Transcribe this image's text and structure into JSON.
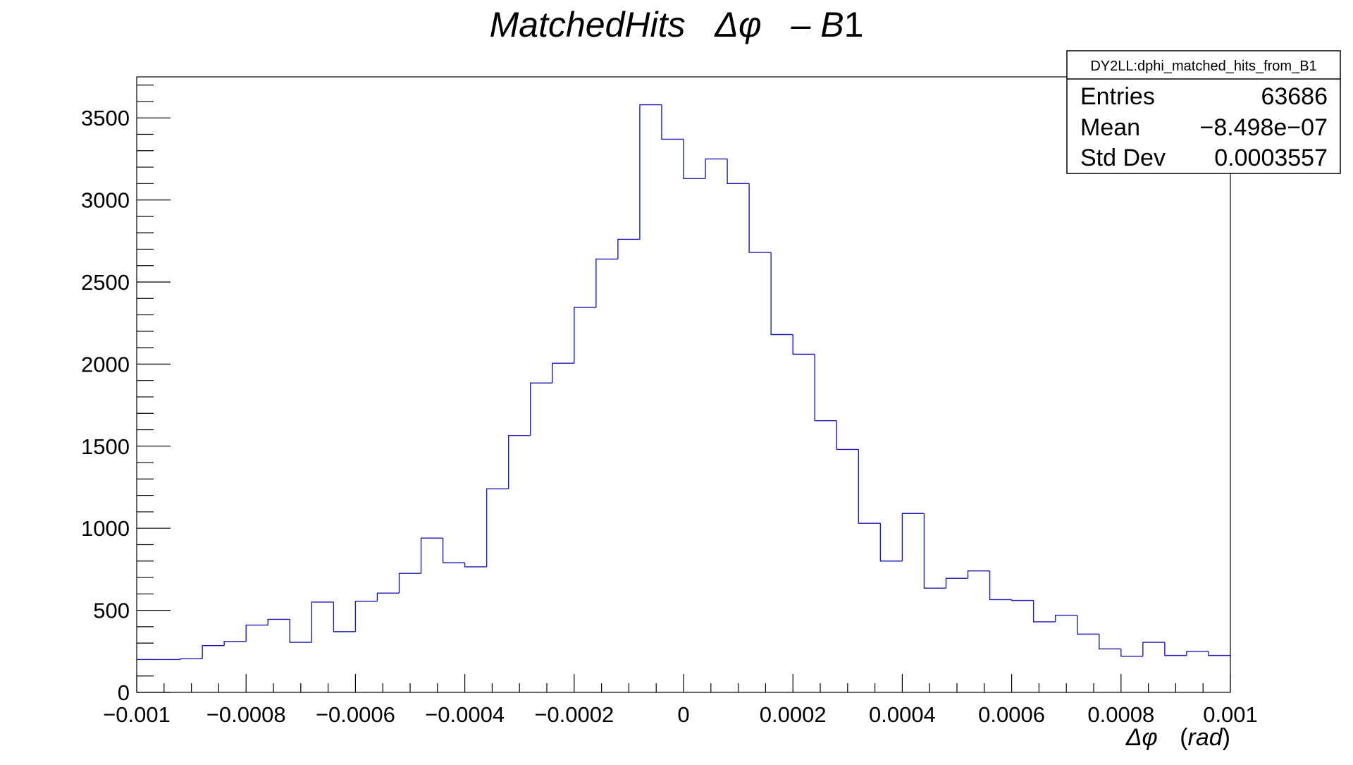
{
  "chart_data": {
    "type": "histogram",
    "title": {
      "prefix": "MatchedHits",
      "symbol": "Δφ",
      "suffix_dash": "– B",
      "suffix_num": "1"
    },
    "xlabel": {
      "symbol": "Δφ",
      "unit_open": "(",
      "unit": "rad",
      "unit_close": ")"
    },
    "xlim": [
      -0.001,
      0.001
    ],
    "ylim": [
      0,
      3750
    ],
    "x_ticks": [
      {
        "value": -0.001,
        "label": "−0.001"
      },
      {
        "value": -0.0008,
        "label": "−0.0008"
      },
      {
        "value": -0.0006,
        "label": "−0.0006"
      },
      {
        "value": -0.0004,
        "label": "−0.0004"
      },
      {
        "value": -0.0002,
        "label": "−0.0002"
      },
      {
        "value": 0,
        "label": "0"
      },
      {
        "value": 0.0002,
        "label": "0.0002"
      },
      {
        "value": 0.0004,
        "label": "0.0004"
      },
      {
        "value": 0.0006,
        "label": "0.0006"
      },
      {
        "value": 0.0008,
        "label": "0.0008"
      },
      {
        "value": 0.001,
        "label": "0.001"
      }
    ],
    "y_ticks": [
      {
        "value": 0,
        "label": "0"
      },
      {
        "value": 500,
        "label": "500"
      },
      {
        "value": 1000,
        "label": "1000"
      },
      {
        "value": 1500,
        "label": "1500"
      },
      {
        "value": 2000,
        "label": "2000"
      },
      {
        "value": 2500,
        "label": "2500"
      },
      {
        "value": 3000,
        "label": "3000"
      },
      {
        "value": 3500,
        "label": "3500"
      }
    ],
    "bin_edges_range": [
      -0.001,
      0.001
    ],
    "n_bins": 50,
    "counts": [
      200,
      200,
      205,
      285,
      310,
      410,
      445,
      305,
      550,
      370,
      555,
      605,
      725,
      940,
      790,
      765,
      1240,
      1565,
      1885,
      2005,
      2345,
      2640,
      2760,
      3580,
      3370,
      3130,
      3250,
      3100,
      2680,
      2180,
      2060,
      1655,
      1480,
      1030,
      800,
      1090,
      635,
      695,
      740,
      565,
      560,
      430,
      470,
      355,
      265,
      220,
      305,
      225,
      250,
      225
    ],
    "line_color": "#1c1cb4",
    "grid": false,
    "legend": "none"
  },
  "stats_box": {
    "name": "DY2LL:dphi_matched_hits_from_B1",
    "position": "top-right",
    "rows": [
      {
        "label": "Entries",
        "value": "63686"
      },
      {
        "label": "Mean",
        "value": "−8.498e−07"
      },
      {
        "label": "Std Dev",
        "value": "0.0003557"
      }
    ]
  }
}
